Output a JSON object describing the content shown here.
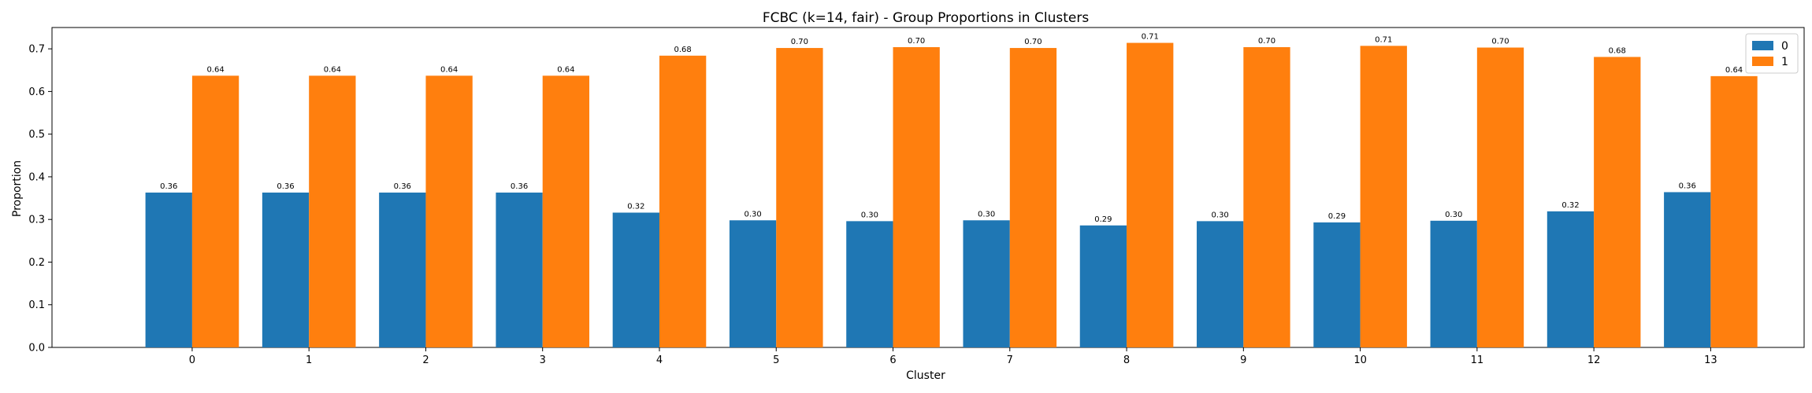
{
  "chart_data": {
    "type": "bar",
    "title": "FCBC (k=14, fair) - Group Proportions in Clusters",
    "xlabel": "Cluster",
    "ylabel": "Proportion",
    "ylim": [
      0,
      0.75
    ],
    "yticks": [
      "0.0",
      "0.1",
      "0.2",
      "0.3",
      "0.4",
      "0.5",
      "0.6",
      "0.7"
    ],
    "categories": [
      "0",
      "1",
      "2",
      "3",
      "4",
      "5",
      "6",
      "7",
      "8",
      "9",
      "10",
      "11",
      "12",
      "13"
    ],
    "grid": false,
    "legend_position": "top-right",
    "series": [
      {
        "name": "0",
        "color": "#1f77b4",
        "values": [
          0.363,
          0.363,
          0.363,
          0.363,
          0.316,
          0.298,
          0.296,
          0.298,
          0.286,
          0.296,
          0.293,
          0.297,
          0.319,
          0.364
        ],
        "labels": [
          "0.36",
          "0.36",
          "0.36",
          "0.36",
          "0.32",
          "0.30",
          "0.30",
          "0.30",
          "0.29",
          "0.30",
          "0.29",
          "0.30",
          "0.32",
          "0.36"
        ]
      },
      {
        "name": "1",
        "color": "#ff7f0e",
        "values": [
          0.637,
          0.637,
          0.637,
          0.637,
          0.684,
          0.702,
          0.704,
          0.702,
          0.714,
          0.704,
          0.707,
          0.703,
          0.681,
          0.636
        ],
        "labels": [
          "0.64",
          "0.64",
          "0.64",
          "0.64",
          "0.68",
          "0.70",
          "0.70",
          "0.70",
          "0.71",
          "0.70",
          "0.71",
          "0.70",
          "0.68",
          "0.64"
        ]
      }
    ]
  }
}
